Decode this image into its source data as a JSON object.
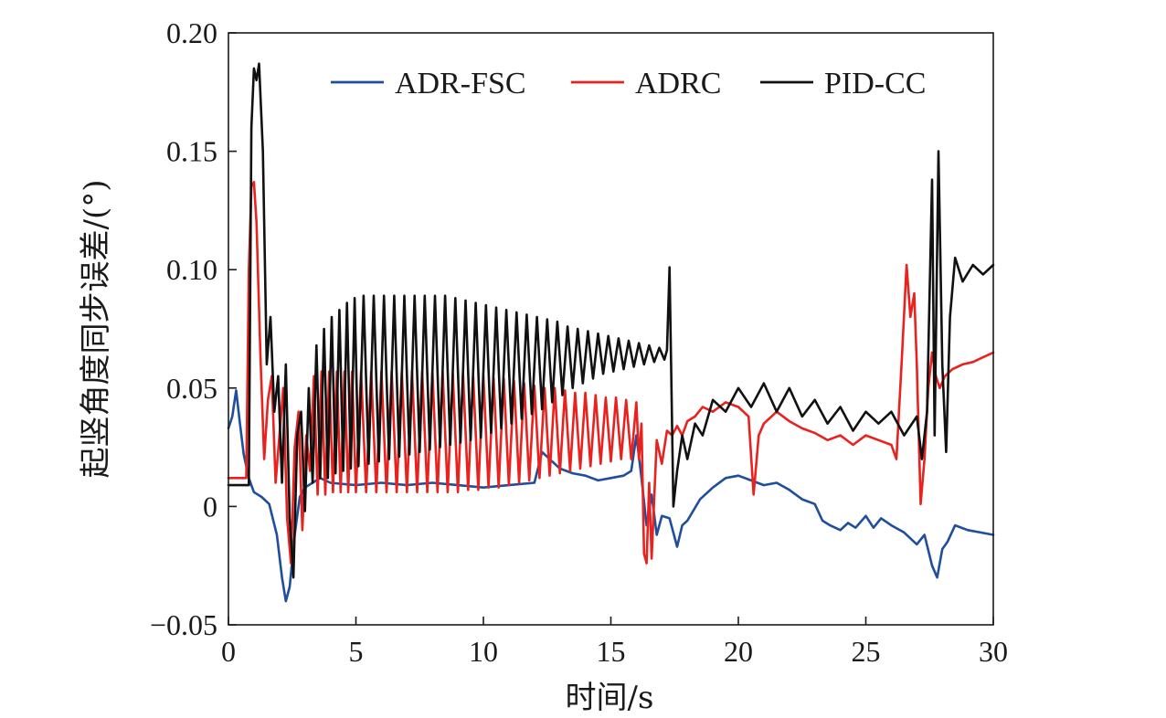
{
  "chart_data": {
    "type": "line",
    "xlabel": "时间/s",
    "ylabel": "起竖角度同步误差/(°)",
    "xlim": [
      0,
      30
    ],
    "ylim": [
      -0.05,
      0.2
    ],
    "xticks": [
      0,
      5,
      10,
      15,
      20,
      25,
      30
    ],
    "xtick_labels": [
      "0",
      "5",
      "10",
      "15",
      "20",
      "25",
      "30"
    ],
    "yticks": [
      -0.05,
      0,
      0.05,
      0.1,
      0.15,
      0.2
    ],
    "ytick_labels": [
      "−0.05",
      "0",
      "0.05",
      "0.10",
      "0.15",
      "0.20"
    ],
    "grid": false,
    "legend_position": "top",
    "series": [
      {
        "name": "ADR-FSC",
        "color": "#1f4e9c",
        "x": [
          0,
          0.15,
          0.3,
          0.45,
          0.6,
          0.8,
          1.0,
          1.3,
          1.6,
          1.9,
          2.1,
          2.25,
          2.4,
          2.6,
          2.8,
          3.0,
          3.3,
          3.6,
          4.0,
          5.0,
          6.0,
          7.0,
          8.0,
          9.0,
          10.0,
          11.0,
          12.0,
          12.3,
          12.6,
          13.0,
          13.5,
          14.0,
          14.5,
          15.0,
          15.5,
          15.8,
          16.0,
          16.2,
          16.4,
          16.6,
          16.8,
          17.0,
          17.3,
          17.6,
          17.8,
          18.0,
          18.5,
          19.0,
          19.5,
          20.0,
          20.5,
          21.0,
          21.5,
          22.0,
          22.5,
          23.0,
          23.3,
          23.6,
          24.0,
          24.3,
          24.6,
          25.0,
          25.3,
          25.6,
          26.0,
          26.5,
          27.0,
          27.3,
          27.6,
          27.8,
          28.0,
          28.2,
          28.5,
          29.0,
          29.5,
          30.0
        ],
        "y": [
          0.033,
          0.038,
          0.049,
          0.035,
          0.022,
          0.012,
          0.006,
          0.004,
          0.001,
          -0.012,
          -0.03,
          -0.04,
          -0.034,
          -0.012,
          0.004,
          0.008,
          0.01,
          0.012,
          0.01,
          0.009,
          0.01,
          0.009,
          0.01,
          0.009,
          0.008,
          0.009,
          0.01,
          0.023,
          0.02,
          0.016,
          0.014,
          0.013,
          0.011,
          0.012,
          0.013,
          0.015,
          0.03,
          0.012,
          -0.008,
          0.005,
          -0.012,
          -0.004,
          -0.005,
          -0.017,
          -0.008,
          -0.006,
          0.003,
          0.008,
          0.012,
          0.013,
          0.011,
          0.009,
          0.01,
          0.007,
          0.003,
          0.001,
          -0.006,
          -0.008,
          -0.01,
          -0.007,
          -0.009,
          -0.004,
          -0.009,
          -0.005,
          -0.008,
          -0.011,
          -0.016,
          -0.012,
          -0.025,
          -0.03,
          -0.018,
          -0.015,
          -0.008,
          -0.01,
          -0.011,
          -0.012
        ]
      },
      {
        "name": "ADRC",
        "color": "#e8231f",
        "x": [
          0,
          0.7,
          0.8,
          0.9,
          1.0,
          1.1,
          1.25,
          1.4,
          1.55,
          1.7,
          1.85,
          2.0,
          2.15,
          2.3,
          2.45,
          2.6,
          2.75,
          2.9,
          3.05,
          3.2,
          3.35,
          3.5,
          3.65,
          3.8,
          3.95,
          4.1,
          4.25,
          4.4,
          4.55,
          4.7,
          4.85,
          5.0,
          5.2,
          5.4,
          5.6,
          5.8,
          6.0,
          6.2,
          6.4,
          6.6,
          6.8,
          7.0,
          7.2,
          7.4,
          7.6,
          7.8,
          8.0,
          8.2,
          8.4,
          8.6,
          8.8,
          9.0,
          9.2,
          9.4,
          9.6,
          9.8,
          10.0,
          10.2,
          10.4,
          10.6,
          10.8,
          11.0,
          11.2,
          11.4,
          11.6,
          11.8,
          12.0,
          12.2,
          12.4,
          12.6,
          12.8,
          13.0,
          13.2,
          13.4,
          13.6,
          13.8,
          14.0,
          14.2,
          14.4,
          14.6,
          14.8,
          15.0,
          15.2,
          15.4,
          15.6,
          15.8,
          16.0,
          16.1,
          16.2,
          16.3,
          16.4,
          16.5,
          16.6,
          16.8,
          17.0,
          17.2,
          17.4,
          17.6,
          17.8,
          18.0,
          18.3,
          18.6,
          19.0,
          19.5,
          20.0,
          20.4,
          20.6,
          20.8,
          21.0,
          21.5,
          22.0,
          22.5,
          23.0,
          23.5,
          24.0,
          24.5,
          25.0,
          25.5,
          26.0,
          26.2,
          26.4,
          26.6,
          26.75,
          26.9,
          27.0,
          27.15,
          27.3,
          27.45,
          27.6,
          27.75,
          27.9,
          28.1,
          28.4,
          28.8,
          29.2,
          29.6,
          30.0
        ],
        "y": [
          0.012,
          0.012,
          0.1,
          0.135,
          0.137,
          0.12,
          0.065,
          0.02,
          0.045,
          0.055,
          0.01,
          0.03,
          0.05,
          -0.005,
          -0.024,
          0.025,
          0.04,
          -0.01,
          0.03,
          0.015,
          0.055,
          0.005,
          0.057,
          0.005,
          0.057,
          0.006,
          0.057,
          0.006,
          0.057,
          0.006,
          0.057,
          0.006,
          0.057,
          0.006,
          0.057,
          0.006,
          0.057,
          0.006,
          0.057,
          0.006,
          0.057,
          0.006,
          0.057,
          0.006,
          0.057,
          0.006,
          0.057,
          0.006,
          0.057,
          0.006,
          0.056,
          0.006,
          0.056,
          0.007,
          0.055,
          0.007,
          0.055,
          0.008,
          0.054,
          0.008,
          0.054,
          0.009,
          0.053,
          0.01,
          0.052,
          0.011,
          0.051,
          0.012,
          0.05,
          0.013,
          0.05,
          0.014,
          0.049,
          0.015,
          0.048,
          0.016,
          0.048,
          0.017,
          0.047,
          0.018,
          0.046,
          0.019,
          0.046,
          0.02,
          0.045,
          0.02,
          0.044,
          0.02,
          0.035,
          -0.02,
          -0.024,
          0.01,
          -0.022,
          0.028,
          0.018,
          0.032,
          0.03,
          0.034,
          0.03,
          0.036,
          0.038,
          0.042,
          0.04,
          0.044,
          0.042,
          0.038,
          0.005,
          0.03,
          0.035,
          0.04,
          0.036,
          0.033,
          0.031,
          0.028,
          0.03,
          0.026,
          0.03,
          0.028,
          0.026,
          0.02,
          0.06,
          0.102,
          0.08,
          0.09,
          0.06,
          0.001,
          0.02,
          0.05,
          0.065,
          0.055,
          0.05,
          0.055,
          0.058,
          0.06,
          0.061,
          0.063,
          0.065
        ]
      },
      {
        "name": "PID-CC",
        "color": "#111111",
        "x": [
          0,
          0.8,
          0.9,
          1.0,
          1.1,
          1.2,
          1.35,
          1.5,
          1.65,
          1.8,
          1.95,
          2.1,
          2.25,
          2.4,
          2.55,
          2.7,
          2.85,
          3.0,
          3.15,
          3.3,
          3.45,
          3.6,
          3.75,
          3.9,
          4.05,
          4.2,
          4.35,
          4.5,
          4.65,
          4.8,
          4.95,
          5.1,
          5.3,
          5.5,
          5.7,
          5.9,
          6.1,
          6.3,
          6.5,
          6.7,
          6.9,
          7.1,
          7.3,
          7.5,
          7.7,
          7.9,
          8.1,
          8.3,
          8.5,
          8.7,
          8.9,
          9.1,
          9.3,
          9.5,
          9.7,
          9.9,
          10.1,
          10.3,
          10.5,
          10.7,
          10.9,
          11.1,
          11.3,
          11.5,
          11.7,
          11.9,
          12.1,
          12.3,
          12.5,
          12.7,
          12.9,
          13.1,
          13.3,
          13.5,
          13.7,
          13.9,
          14.1,
          14.3,
          14.5,
          14.7,
          14.9,
          15.1,
          15.3,
          15.5,
          15.7,
          15.9,
          16.1,
          16.3,
          16.5,
          16.7,
          16.9,
          17.1,
          17.2,
          17.3,
          17.45,
          17.6,
          17.8,
          18.0,
          18.3,
          18.6,
          19.0,
          19.5,
          20.0,
          20.5,
          21.0,
          21.5,
          22.0,
          22.5,
          23.0,
          23.5,
          24.0,
          24.5,
          25.0,
          25.5,
          26.0,
          26.5,
          27.0,
          27.2,
          27.4,
          27.6,
          27.7,
          27.85,
          28.0,
          28.15,
          28.3,
          28.5,
          28.8,
          29.2,
          29.6,
          30.0
        ],
        "y": [
          0.009,
          0.009,
          0.16,
          0.185,
          0.18,
          0.187,
          0.15,
          0.06,
          0.08,
          0.04,
          0.055,
          0.01,
          0.06,
          -0.005,
          -0.03,
          0.03,
          0.04,
          -0.002,
          0.05,
          0.01,
          0.068,
          0.012,
          0.075,
          0.012,
          0.08,
          0.014,
          0.083,
          0.015,
          0.086,
          0.016,
          0.088,
          0.017,
          0.089,
          0.018,
          0.089,
          0.019,
          0.089,
          0.02,
          0.089,
          0.021,
          0.089,
          0.022,
          0.089,
          0.023,
          0.089,
          0.024,
          0.089,
          0.025,
          0.089,
          0.026,
          0.088,
          0.027,
          0.087,
          0.028,
          0.086,
          0.029,
          0.085,
          0.031,
          0.084,
          0.033,
          0.083,
          0.035,
          0.082,
          0.037,
          0.081,
          0.039,
          0.08,
          0.041,
          0.079,
          0.044,
          0.078,
          0.047,
          0.076,
          0.05,
          0.075,
          0.052,
          0.074,
          0.054,
          0.073,
          0.056,
          0.072,
          0.057,
          0.071,
          0.058,
          0.07,
          0.059,
          0.069,
          0.06,
          0.068,
          0.061,
          0.067,
          0.062,
          0.066,
          0.101,
          0.0,
          0.015,
          0.03,
          0.02,
          0.035,
          0.03,
          0.045,
          0.04,
          0.05,
          0.042,
          0.052,
          0.04,
          0.05,
          0.038,
          0.045,
          0.035,
          0.042,
          0.032,
          0.04,
          0.035,
          0.04,
          0.03,
          0.038,
          0.02,
          0.04,
          0.138,
          0.03,
          0.15,
          0.06,
          0.023,
          0.08,
          0.105,
          0.095,
          0.102,
          0.098,
          0.102
        ]
      }
    ]
  }
}
